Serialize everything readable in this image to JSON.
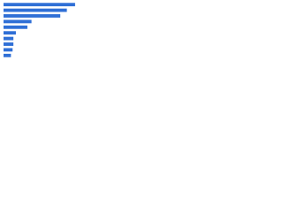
{
  "chart_data": {
    "type": "bar",
    "orientation": "horizontal",
    "categories": [
      null,
      null,
      null,
      null,
      null,
      null,
      null,
      null,
      null,
      null
    ],
    "values": [
      87,
      77,
      69,
      34,
      29,
      15,
      12,
      12,
      11,
      9
    ],
    "color": "#2f6fd6",
    "xlim": [
      0,
      100
    ]
  }
}
